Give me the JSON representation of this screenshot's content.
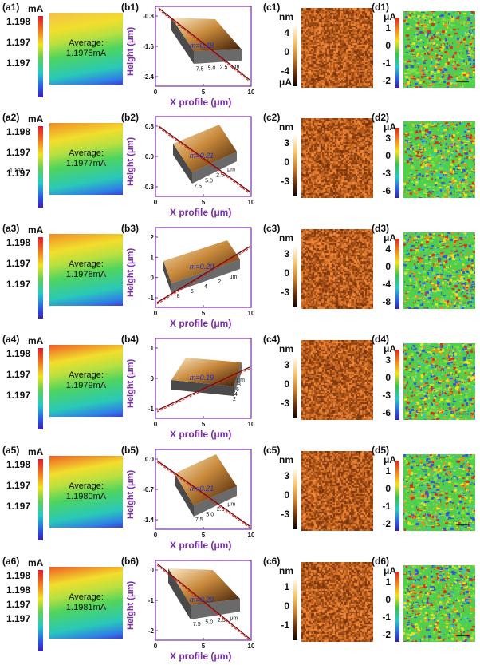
{
  "rows": [
    {
      "a": {
        "label": "(a1)",
        "unit": "mA",
        "ticks": [
          "1.198",
          "1.197",
          "1.197"
        ],
        "extra_tick": "",
        "average": "Average:",
        "average_value": "1.1975mA"
      },
      "b": {
        "label": "(b1)",
        "slope": "m=0.18",
        "yticks": [
          "-0.8",
          "-1.6",
          "-2.4"
        ],
        "xticks": [
          "0",
          "5",
          "10"
        ],
        "surface_ticks": [
          "7.5",
          "5.0",
          "2.5",
          "μm"
        ]
      },
      "c": {
        "label": "(c1)",
        "unit_top": "nm",
        "unit_bottom": "μA",
        "ticks": [
          "4",
          "0",
          "-4"
        ]
      },
      "d": {
        "label": "(d1)",
        "unit": "μA",
        "ticks": [
          "1",
          "0",
          "-1",
          "-2"
        ]
      }
    },
    {
      "a": {
        "label": "(a2)",
        "unit": "mA",
        "ticks": [
          "1.198",
          "1.197",
          "1.197"
        ],
        "extra_tick": "1.197",
        "average": "Average:",
        "average_value": "1.1977mA"
      },
      "b": {
        "label": "(b2)",
        "slope": "m=0.21",
        "yticks": [
          "0.8",
          "0.0",
          "-0.8"
        ],
        "xticks": [
          "0",
          "5",
          "10"
        ],
        "surface_ticks": [
          "7.5",
          "5.0",
          "2.5",
          "μm"
        ]
      },
      "c": {
        "label": "(c2)",
        "unit_top": "nm",
        "unit_bottom": "",
        "ticks": [
          "3",
          "0",
          "-3"
        ]
      },
      "d": {
        "label": "(d2)",
        "unit": "μA",
        "ticks": [
          "3",
          "0",
          "-3",
          "-6"
        ]
      }
    },
    {
      "a": {
        "label": "(a3)",
        "unit": "mA",
        "ticks": [
          "1.198",
          "1.197",
          "1.197"
        ],
        "extra_tick": "",
        "average": "Average:",
        "average_value": "1.1978mA"
      },
      "b": {
        "label": "(b3)",
        "slope": "m=0.20",
        "yticks": [
          "2",
          "1",
          "0",
          "-1"
        ],
        "xticks": [
          "0",
          "5",
          "10"
        ],
        "surface_ticks": [
          "8",
          "6",
          "4",
          "2",
          "μm"
        ]
      },
      "c": {
        "label": "(c3)",
        "unit_top": "nm",
        "unit_bottom": "",
        "ticks": [
          "3",
          "0",
          "-3"
        ]
      },
      "d": {
        "label": "(d3)",
        "unit": "μA",
        "ticks": [
          "4",
          "0",
          "-4",
          "-8"
        ]
      }
    },
    {
      "a": {
        "label": "(a4)",
        "unit": "mA",
        "ticks": [
          "1.198",
          "1.197",
          "1.197"
        ],
        "extra_tick": "",
        "average": "Average:",
        "average_value": "1.1979mA"
      },
      "b": {
        "label": "(b4)",
        "slope": "m=0.19",
        "yticks": [
          "1",
          "0",
          "-1"
        ],
        "xticks": [
          "0",
          "5",
          "10"
        ],
        "surface_ticks": [
          "2",
          "4",
          "6",
          "8",
          "μm"
        ]
      },
      "c": {
        "label": "(c4)",
        "unit_top": "nm",
        "unit_bottom": "",
        "ticks": [
          "3",
          "0",
          "-3"
        ]
      },
      "d": {
        "label": "(d4)",
        "unit": "μA",
        "ticks": [
          "3",
          "0",
          "-3",
          "-6"
        ]
      }
    },
    {
      "a": {
        "label": "(a5)",
        "unit": "mA",
        "ticks": [
          "1.198",
          "1.197",
          "1.197"
        ],
        "extra_tick": "",
        "average": "Average:",
        "average_value": "1.1980mA"
      },
      "b": {
        "label": "(b5)",
        "slope": "m=0.21",
        "yticks": [
          "0.0",
          "-0.7",
          "-1.4"
        ],
        "xticks": [
          "0",
          "5",
          "10"
        ],
        "surface_ticks": [
          "7.5",
          "5.0",
          "2.5",
          "μm"
        ]
      },
      "c": {
        "label": "(c5)",
        "unit_top": "nm",
        "unit_bottom": "",
        "ticks": [
          "3",
          "0",
          "-3"
        ]
      },
      "d": {
        "label": "(d5)",
        "unit": "μA",
        "ticks": [
          "1",
          "0",
          "-1",
          "-2"
        ]
      }
    },
    {
      "a": {
        "label": "(a6)",
        "unit": "mA",
        "ticks": [
          "1.198",
          "1.198",
          "1.197",
          "1.197"
        ],
        "extra_tick": "",
        "average": "Average:",
        "average_value": "1.1981mA"
      },
      "b": {
        "label": "(b6)",
        "slope": "m=0.20",
        "yticks": [
          "0",
          "-1",
          "-2"
        ],
        "xticks": [
          "0",
          "5",
          "10"
        ],
        "surface_ticks": [
          "7.5",
          "5.0",
          "2.5",
          "μm"
        ]
      },
      "c": {
        "label": "(c6)",
        "unit_top": "nm",
        "unit_bottom": "",
        "ticks": [
          "1",
          "0",
          "-1"
        ]
      },
      "d": {
        "label": "(d6)",
        "unit": "μA",
        "ticks": [
          "1",
          "0",
          "-1",
          "-2"
        ]
      }
    }
  ],
  "axis": {
    "ylabel": "Height (μm)",
    "xlabel": "X profile (μm)"
  },
  "colors": {
    "axis_purple": "#7b2da8",
    "slope_blue": "#1c2fd0",
    "profile_line": "#7a1010"
  }
}
